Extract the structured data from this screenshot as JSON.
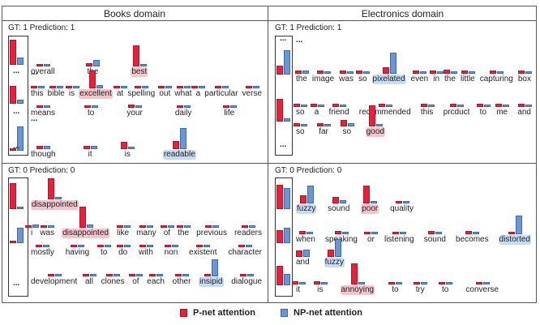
{
  "headers": {
    "books": "Books domain",
    "electronics": "Electronics domain"
  },
  "legend": {
    "p_net": "P-net attention",
    "np_net": "NP-net attention"
  },
  "colors": {
    "p_net": "#e8203a",
    "np_net": "#6a97d4",
    "red_highlight": "#f4c3cb",
    "blue_highlight": "#c6dcf2"
  },
  "panels": [
    {
      "id": "books-pos",
      "gt_label": "GT: 1 Prediction: 1",
      "ellipses": [
        "...",
        "...",
        "..."
      ],
      "lines": [
        {
          "words": [
            {
              "t": "overall",
              "p": 0.08,
              "n": 0.05
            },
            {
              "t": "the",
              "p": 0.15,
              "n": 0.3
            },
            {
              "t": "best",
              "hl": "red",
              "p": 1.0,
              "n": 0.05
            }
          ]
        },
        {
          "ellipsis": "...",
          "words": []
        },
        {
          "words": [
            {
              "t": "this",
              "p": 0.1,
              "n": 0.1
            },
            {
              "t": "bible",
              "p": 0.1,
              "n": 0.08
            },
            {
              "t": "is",
              "p": 0.1,
              "n": 0.1
            },
            {
              "t": "excellent",
              "hl": "red",
              "p": 0.85,
              "n": 0.15
            },
            {
              "t": "at",
              "p": 0.1,
              "n": 0.05
            },
            {
              "t": "spelling",
              "p": 0.1,
              "n": 0.08
            },
            {
              "t": "out",
              "p": 0.1,
              "n": 0.08
            },
            {
              "t": "what",
              "p": 0.1,
              "n": 0.08
            },
            {
              "t": "a",
              "p": 0.1,
              "n": 0.1
            },
            {
              "t": "particular",
              "p": 0.1,
              "n": 0.08
            },
            {
              "t": "verse",
              "p": 0.08,
              "n": 0.1
            }
          ]
        },
        {
          "words": [
            {
              "t": "means",
              "p": 0.1,
              "n": 0.12
            },
            {
              "t": "to",
              "p": 0.1,
              "n": 0.1
            },
            {
              "t": "your",
              "p": 0.15,
              "n": 0.05
            },
            {
              "t": "daily",
              "p": 0.1,
              "n": 0.1
            },
            {
              "t": "life",
              "p": 0.1,
              "n": 0.08
            }
          ]
        },
        {
          "ellipsis": "...",
          "words": []
        },
        {
          "words": [
            {
              "t": "though",
              "p": 0.15,
              "n": 0.15
            },
            {
              "t": "it",
              "p": 0.15,
              "n": 0.15
            },
            {
              "t": "is",
              "p": 0.35,
              "n": 0.1
            },
            {
              "t": "readable",
              "hl": "blue",
              "p": 0.4,
              "n": 1.0
            }
          ]
        }
      ],
      "side": [
        {
          "p": 0.9,
          "n": 0.25
        },
        {
          "p": 0.6,
          "n": 0.15
        },
        {
          "p": 0.05,
          "n": 0.8
        }
      ]
    },
    {
      "id": "electronics-pos",
      "gt_label": "GT: 1 Prediction: 1",
      "ellipses": [
        "...",
        "..."
      ],
      "lines": [
        {
          "words": [
            {
              "t": "the",
              "p": 0.15,
              "n": 0.15
            },
            {
              "t": "image",
              "p": 0.15,
              "n": 0.1
            },
            {
              "t": "was",
              "p": 0.15,
              "n": 0.08
            },
            {
              "t": "so",
              "p": 0.15,
              "n": 0.05
            },
            {
              "t": "pixelated",
              "hl": "blue",
              "p": 0.3,
              "n": 1.0
            },
            {
              "t": "even",
              "p": 0.15,
              "n": 0.08
            },
            {
              "t": "in",
              "p": 0.15,
              "n": 0.05
            },
            {
              "t": "the",
              "p": 0.2,
              "n": 0.05
            },
            {
              "t": "little",
              "p": 0.15,
              "n": 0.08
            },
            {
              "t": "capturing",
              "p": 0.15,
              "n": 0.08
            },
            {
              "t": "box",
              "p": 0.15,
              "n": 0.05
            }
          ]
        },
        {
          "words": [
            {
              "t": "so",
              "p": 0.15,
              "n": 0.05
            },
            {
              "t": "a",
              "p": 0.15,
              "n": 0.1
            },
            {
              "t": "friend",
              "p": 0.15,
              "n": 0.08
            },
            {
              "t": "recommended",
              "p": 0.15,
              "n": 0.08
            },
            {
              "t": "this",
              "p": 0.15,
              "n": 0.08
            },
            {
              "t": "prcduct",
              "p": 0.15,
              "n": 0.08
            },
            {
              "t": "to",
              "p": 0.15,
              "n": 0.08
            },
            {
              "t": "me",
              "p": 0.15,
              "n": 0.08
            },
            {
              "t": "and",
              "p": 0.15,
              "n": 0.1
            }
          ]
        },
        {
          "words": [
            {
              "t": "so",
              "p": 0.15,
              "n": 0.1
            },
            {
              "t": "far",
              "p": 0.15,
              "n": 0.1
            },
            {
              "t": "so",
              "p": 0.3,
              "n": 0.15
            },
            {
              "t": "good",
              "hl": "red",
              "p": 1.0,
              "n": 0.1
            }
          ]
        },
        {
          "ellipsis": "...",
          "words": []
        }
      ],
      "side": [
        {
          "p": 0.3,
          "n": 0.8
        },
        {
          "p": 0.7,
          "n": 0.1
        }
      ]
    },
    {
      "id": "books-neg",
      "gt_label": "GT: 0 Prediction: 0",
      "ellipses": [
        "..."
      ],
      "lines": [
        {
          "words": [
            {
              "t": "disappointed",
              "hl": "red",
              "p": 1.0,
              "n": 0.05
            }
          ]
        },
        {
          "words": [
            {
              "t": "i",
              "p": 0.1,
              "n": 0.15
            },
            {
              "t": "was",
              "p": 0.1,
              "n": 0.1
            },
            {
              "t": "disappointed",
              "hl": "red",
              "p": 1.0,
              "n": 0.15
            },
            {
              "t": "like",
              "p": 0.1,
              "n": 0.08
            },
            {
              "t": "many",
              "p": 0.1,
              "n": 0.08
            },
            {
              "t": "of",
              "p": 0.1,
              "n": 0.08
            },
            {
              "t": "the",
              "p": 0.1,
              "n": 0.08
            },
            {
              "t": "previous",
              "p": 0.1,
              "n": 0.08
            },
            {
              "t": "readers",
              "p": 0.1,
              "n": 0.08
            }
          ]
        },
        {
          "words": [
            {
              "t": "mostly",
              "p": 0.1,
              "n": 0.05
            },
            {
              "t": "having",
              "p": 0.1,
              "n": 0.05
            },
            {
              "t": "to",
              "p": 0.1,
              "n": 0.05
            },
            {
              "t": "do",
              "p": 0.1,
              "n": 0.05
            },
            {
              "t": "with",
              "p": 0.1,
              "n": 0.05
            },
            {
              "t": "non",
              "p": 0.1,
              "n": 0.05
            },
            {
              "t": "existent",
              "p": 0.1,
              "n": 0.05
            },
            {
              "t": "character",
              "p": 0.1,
              "n": 0.05
            }
          ]
        },
        {
          "words": [
            {
              "t": "development",
              "p": 0.1,
              "n": 0.05
            },
            {
              "t": "all",
              "p": 0.1,
              "n": 0.05
            },
            {
              "t": "clones",
              "p": 0.1,
              "n": 0.05
            },
            {
              "t": "of",
              "p": 0.1,
              "n": 0.05
            },
            {
              "t": "each",
              "p": 0.1,
              "n": 0.05
            },
            {
              "t": "other",
              "p": 0.1,
              "n": 0.05
            },
            {
              "t": "insipid",
              "hl": "blue",
              "p": 0.1,
              "n": 0.8
            },
            {
              "t": "dialogue",
              "p": 0.1,
              "n": 0.1
            }
          ]
        }
      ],
      "side": [
        {
          "p": 0.9,
          "n": 0.05
        },
        {
          "p": 0.05,
          "n": 0.5
        }
      ]
    },
    {
      "id": "electronics-neg",
      "gt_label": "GT: 0 Prediction: 0",
      "ellipses": [],
      "lines": [
        {
          "words": [
            {
              "t": "fuzzy",
              "hl": "blue",
              "p": 0.4,
              "n": 0.85
            },
            {
              "t": "sound",
              "p": 0.3,
              "n": 0.15
            },
            {
              "t": "poor",
              "hl": "red",
              "p": 0.85,
              "n": 0.1
            },
            {
              "t": "quality",
              "p": 0.1,
              "n": 0.08
            }
          ]
        },
        {
          "words": [
            {
              "t": "when",
              "p": 0.15,
              "n": 0.05
            },
            {
              "t": "speaking",
              "p": 0.15,
              "n": 0.05
            },
            {
              "t": "or",
              "p": 0.1,
              "n": 0.05
            },
            {
              "t": "listening",
              "p": 0.1,
              "n": 0.05
            },
            {
              "t": "sound",
              "p": 0.15,
              "n": 0.05
            },
            {
              "t": "becomes",
              "p": 0.15,
              "n": 0.05
            },
            {
              "t": "distorted",
              "hl": "blue",
              "p": 0.1,
              "n": 0.9
            }
          ]
        },
        {
          "words": [
            {
              "t": "and",
              "p": 0.3,
              "n": 0.35
            },
            {
              "t": "fuzzy",
              "hl": "blue",
              "p": 0.35,
              "n": 0.85
            }
          ]
        },
        {
          "words": [
            {
              "t": "it",
              "p": 0.15,
              "n": 0.1
            },
            {
              "t": "is",
              "p": 0.15,
              "n": 0.1
            },
            {
              "t": "annoying",
              "hl": "red",
              "p": 1.0,
              "n": 0.1
            },
            {
              "t": "to",
              "p": 0.1,
              "n": 0.1
            },
            {
              "t": "try",
              "p": 0.1,
              "n": 0.1
            },
            {
              "t": "to",
              "p": 0.1,
              "n": 0.1
            },
            {
              "t": "converse",
              "p": 0.1,
              "n": 0.1
            }
          ]
        }
      ],
      "side": [
        {
          "p": 0.9,
          "n": 0.8
        },
        {
          "p": 0.5,
          "n": 0.6
        },
        {
          "p": 0.7,
          "n": 0.4
        }
      ]
    }
  ]
}
